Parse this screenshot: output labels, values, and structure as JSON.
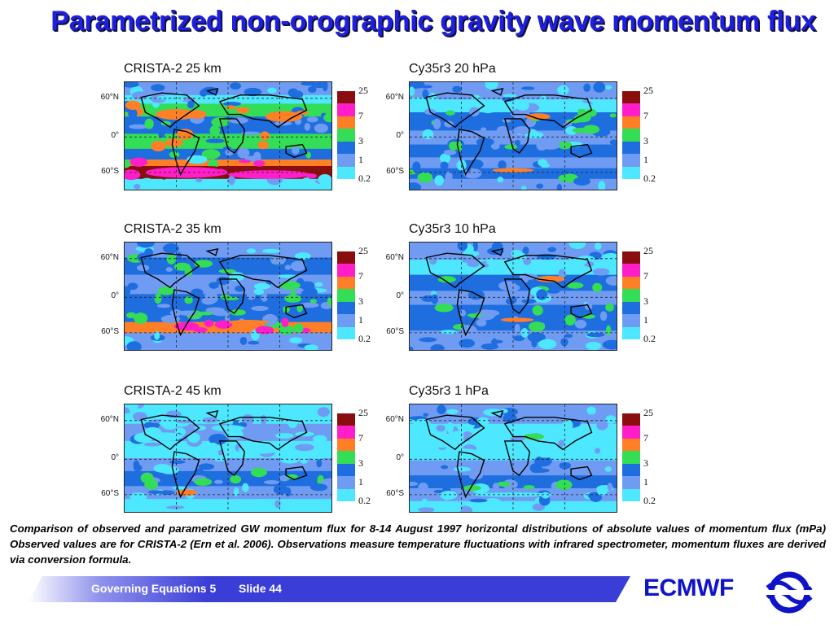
{
  "slide": {
    "title": "Parametrized non-orographic gravity wave momentum flux",
    "caption": "Comparison of observed and parametrized GW momentum flux for 8-14 August 1997 horizontal distributions of absolute values of momentum flux (mPa) Observed values are for CRISTA-2 (Ern et al. 2006). Observations measure temperature fluctuations with infrared spectrometer, momentum fluxes are derived via conversion formula.",
    "footer": {
      "section": "Governing Equations 5",
      "slide_label": "Slide 44"
    },
    "logo_text": "ECMWF"
  },
  "colors": {
    "title": "#1f1fe0",
    "footer_band": "#3a3dd6",
    "logo": "#0f14c8",
    "levels": [
      "#4de8ff",
      "#6f9cf2",
      "#1e6ee0",
      "#33dd55",
      "#ff7f27",
      "#ff1ec8",
      "#8b0e0e"
    ]
  },
  "chart_data": [
    {
      "type": "heatmap",
      "title": "CRISTA-2 25 km",
      "lat_ticks": [
        "60°N",
        "0°",
        "60°S"
      ],
      "colorbar_ticks": [
        "25",
        "7",
        "3",
        "1",
        "0.2"
      ],
      "units": "mPa",
      "max_level": 6
    },
    {
      "type": "heatmap",
      "title": "Cy35r3 20 hPa",
      "lat_ticks": [
        "60°N",
        "0°",
        "60°S"
      ],
      "colorbar_ticks": [
        "25",
        "7",
        "3",
        "1",
        "0.2"
      ],
      "units": "mPa",
      "max_level": 4
    },
    {
      "type": "heatmap",
      "title": "CRISTA-2 35 km",
      "lat_ticks": [
        "60°N",
        "0°",
        "60°S"
      ],
      "colorbar_ticks": [
        "25",
        "7",
        "3",
        "1",
        "0.2"
      ],
      "units": "mPa",
      "max_level": 5
    },
    {
      "type": "heatmap",
      "title": "Cy35r3 10 hPa",
      "lat_ticks": [
        "60°N",
        "0°",
        "60°S"
      ],
      "colorbar_ticks": [
        "25",
        "7",
        "3",
        "1",
        "0.2"
      ],
      "units": "mPa",
      "max_level": 4
    },
    {
      "type": "heatmap",
      "title": "CRISTA-2 45 km",
      "lat_ticks": [
        "60°N",
        "0°",
        "60°S"
      ],
      "colorbar_ticks": [
        "25",
        "7",
        "3",
        "1",
        "0.2"
      ],
      "units": "mPa",
      "max_level": 4
    },
    {
      "type": "heatmap",
      "title": "Cy35r3 1 hPa",
      "lat_ticks": [
        "60°N",
        "0°",
        "60°S"
      ],
      "colorbar_ticks": [
        "25",
        "7",
        "3",
        "1",
        "0.2"
      ],
      "units": "mPa",
      "max_level": 3
    }
  ]
}
